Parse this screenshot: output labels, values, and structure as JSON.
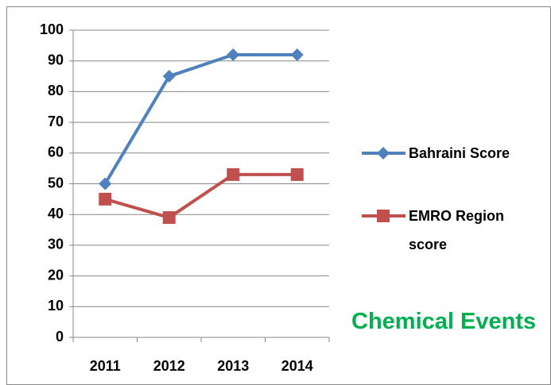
{
  "chart_data": {
    "type": "line",
    "categories": [
      "2011",
      "2012",
      "2013",
      "2014"
    ],
    "series": [
      {
        "name": "Bahraini Score",
        "color": "#4f81bd",
        "marker": "diamond",
        "values": [
          50,
          85,
          92,
          92
        ]
      },
      {
        "name": "EMRO Region score",
        "color": "#c0504d",
        "marker": "square",
        "values": [
          45,
          39,
          53,
          53
        ]
      }
    ],
    "ylim": [
      0,
      100
    ],
    "yticks": [
      0,
      10,
      20,
      30,
      40,
      50,
      60,
      70,
      80,
      90,
      100
    ],
    "grid": true,
    "legend": "right",
    "annotation": "Chemical Events",
    "annotation_color": "#00b050"
  }
}
